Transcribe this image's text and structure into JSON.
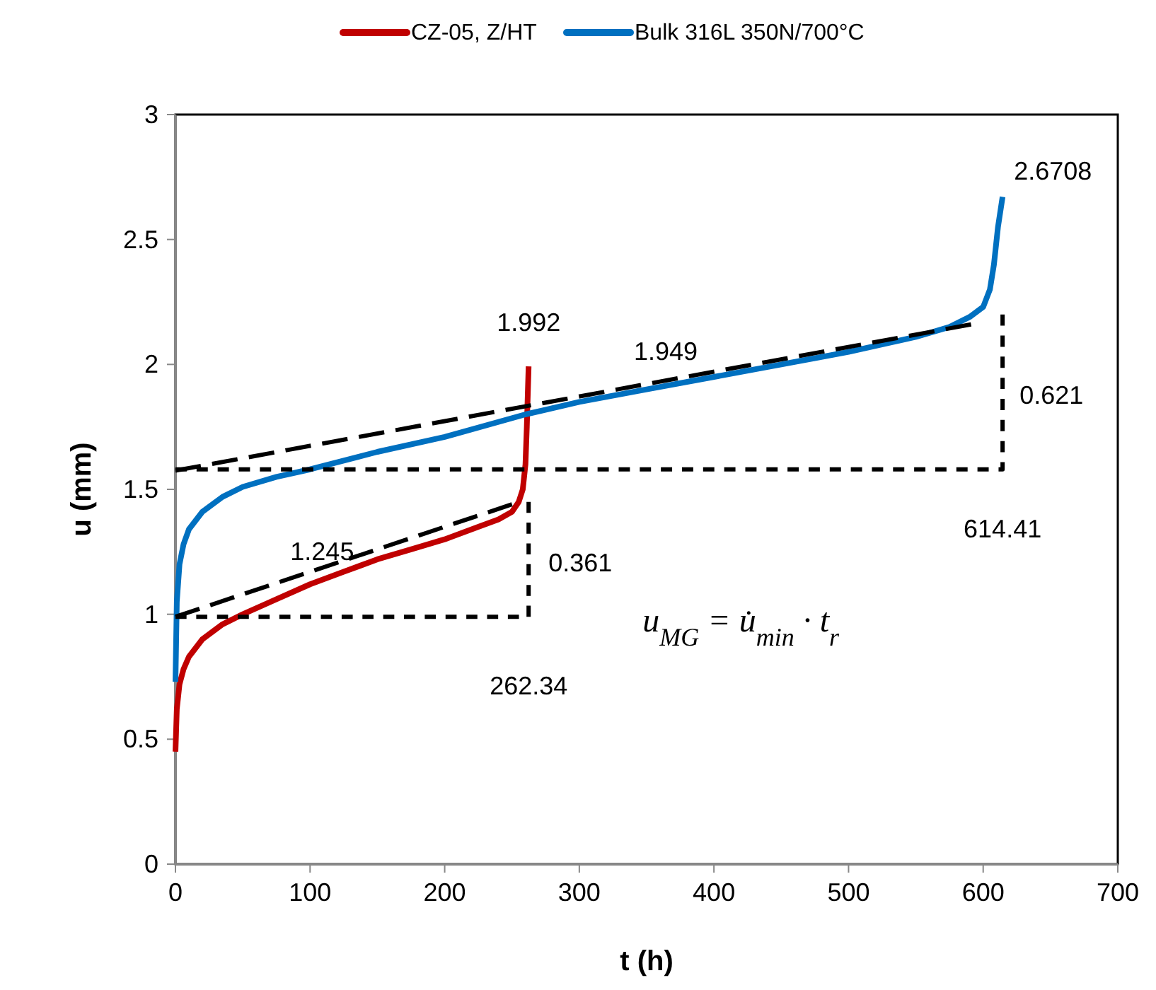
{
  "chart_data": {
    "type": "line",
    "xlabel": "t (h)",
    "ylabel": "u (mm)",
    "xlim": [
      0,
      700
    ],
    "ylim": [
      0,
      3
    ],
    "xticks": [
      0,
      100,
      200,
      300,
      400,
      500,
      600,
      700
    ],
    "yticks": [
      0,
      0.5,
      1,
      1.5,
      2,
      2.5,
      3
    ],
    "grid": false,
    "legend": "top",
    "marker": "none",
    "line_style": "solid",
    "series": [
      {
        "name": "CZ-05, Z/HT",
        "color": "#c00000",
        "x": [
          0,
          1,
          3,
          6,
          10,
          20,
          35,
          50,
          75,
          100,
          125,
          150,
          175,
          200,
          225,
          240,
          250,
          255,
          258,
          260,
          261,
          262.34
        ],
        "values": [
          0.45,
          0.62,
          0.72,
          0.78,
          0.83,
          0.9,
          0.96,
          1.0,
          1.06,
          1.12,
          1.17,
          1.22,
          1.26,
          1.3,
          1.35,
          1.38,
          1.41,
          1.45,
          1.5,
          1.6,
          1.75,
          1.992
        ]
      },
      {
        "name": "Bulk 316L 350N/700°C",
        "color": "#0070c0",
        "x": [
          0,
          1,
          3,
          6,
          10,
          20,
          35,
          50,
          75,
          100,
          150,
          200,
          260,
          300,
          350,
          400,
          450,
          500,
          550,
          575,
          590,
          600,
          605,
          608,
          611,
          614.41
        ],
        "values": [
          0.73,
          1.05,
          1.2,
          1.28,
          1.34,
          1.41,
          1.47,
          1.51,
          1.55,
          1.58,
          1.65,
          1.71,
          1.8,
          1.85,
          1.9,
          1.95,
          2.0,
          2.05,
          2.11,
          2.15,
          2.19,
          2.23,
          2.3,
          2.4,
          2.55,
          2.6708
        ]
      },
      {
        "color": "#000000",
        "line_style": "dashed",
        "x": [
          0,
          250
        ],
        "values": [
          0.99,
          1.44
        ]
      },
      {
        "color": "#000000",
        "line_style": "dashed",
        "x": [
          0,
          591
        ],
        "values": [
          1.575,
          2.16
        ]
      },
      {
        "color": "#000000",
        "line_style": "dotted",
        "x": [
          0,
          262.34,
          262.34
        ],
        "values": [
          0.99,
          0.99,
          1.45
        ]
      },
      {
        "color": "#000000",
        "line_style": "dotted",
        "x": [
          0,
          614.41,
          614.41
        ],
        "values": [
          1.58,
          1.58,
          2.2
        ]
      }
    ],
    "annotations": [
      {
        "text": "1.992",
        "x": 262.34,
        "y": 1.992
      },
      {
        "text": "2.6708",
        "x": 614.41,
        "y": 2.6708
      },
      {
        "text": "1.245",
        "x": 130,
        "y": 1.245
      },
      {
        "text": "1.949",
        "x": 380,
        "y": 1.949
      },
      {
        "text": "0.361",
        "x": 262.34,
        "y": 1.2
      },
      {
        "text": "0.621",
        "x": 614.41,
        "y": 1.87
      },
      {
        "text": "262.34",
        "x": 262.34,
        "y": 0.99
      },
      {
        "text": "614.41",
        "x": 614.41,
        "y": 1.58
      },
      "u$_{MG}$ = u̇$_{min}$ · t$_{r}$"
    ]
  }
}
